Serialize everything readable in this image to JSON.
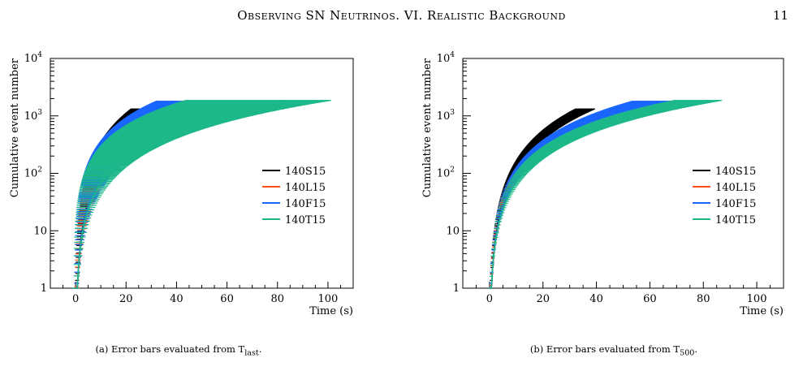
{
  "page": {
    "title": "Observing SN Neutrinos. VI. Realistic Background",
    "number": "11"
  },
  "chart_data": [
    {
      "type": "line",
      "panel_label": "(a) Error bars evaluated from T",
      "caption_sub": "last",
      "xlabel": "Time (s)",
      "ylabel": "Cumulative event number",
      "yscale": "log",
      "xlim": [
        -10,
        110
      ],
      "ylim": [
        1,
        10000
      ],
      "xticks": [
        0,
        20,
        40,
        60,
        80,
        100
      ],
      "yticks": [
        {
          "value": 1,
          "label": "1"
        },
        {
          "value": 10,
          "label": "10"
        },
        {
          "value": 100,
          "label": "10",
          "sup": "2"
        },
        {
          "value": 1000,
          "label": "10",
          "sup": "3"
        },
        {
          "value": 10000,
          "label": "10",
          "sup": "4"
        }
      ],
      "legend_position": "right",
      "errorbar_spread": 0.4,
      "series": [
        {
          "name": "140S15",
          "color": "#000000",
          "end_time": 37,
          "total": 1320
        },
        {
          "name": "140L15",
          "color": "#ff4d1a",
          "end_time": 56,
          "total": 1620
        },
        {
          "name": "140F15",
          "color": "#1a66ff",
          "end_time": 63,
          "total": 1800
        },
        {
          "name": "140T15",
          "color": "#1db88a",
          "end_time": 82,
          "total": 1860
        }
      ]
    },
    {
      "type": "line",
      "panel_label": "(b) Error bars evaluated from T",
      "caption_sub": "500",
      "xlabel": "Time (s)",
      "ylabel": "Cumulative event number",
      "yscale": "log",
      "xlim": [
        -10,
        110
      ],
      "ylim": [
        1,
        10000
      ],
      "xticks": [
        0,
        20,
        40,
        60,
        80,
        100
      ],
      "yticks": [
        {
          "value": 1,
          "label": "1"
        },
        {
          "value": 10,
          "label": "10"
        },
        {
          "value": 100,
          "label": "10",
          "sup": "2"
        },
        {
          "value": 1000,
          "label": "10",
          "sup": "3"
        },
        {
          "value": 10000,
          "label": "10",
          "sup": "4"
        }
      ],
      "legend_position": "right",
      "errorbar_spread": 0.12,
      "series": [
        {
          "name": "140S15",
          "color": "#000000",
          "end_time": 37,
          "total": 1320
        },
        {
          "name": "140L15",
          "color": "#ff4d1a",
          "end_time": 59,
          "total": 1620
        },
        {
          "name": "140F15",
          "color": "#1a66ff",
          "end_time": 63,
          "total": 1800
        },
        {
          "name": "140T15",
          "color": "#1db88a",
          "end_time": 81,
          "total": 1860
        }
      ]
    }
  ]
}
